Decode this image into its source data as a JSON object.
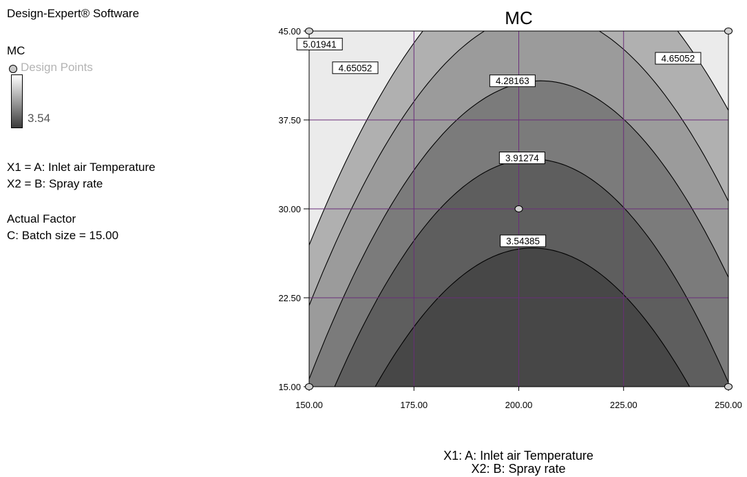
{
  "sidebar": {
    "software": "Design-Expert® Software",
    "response": "MC",
    "design_points_label": "Design Points",
    "legend_low_value": "3.54",
    "x1_def": "X1 = A: Inlet air Temperature",
    "x2_def": "X2 = B: Spray rate",
    "actual_factor_heading": "Actual Factor",
    "actual_factor_value": "C: Batch size = 15.00"
  },
  "chart_data": {
    "type": "contour",
    "title": "MC",
    "xlabel": "X1: A: Inlet air Temperature",
    "ylabel": "X2: B: Spray rate",
    "xlim": [
      150,
      250
    ],
    "ylim": [
      15,
      45
    ],
    "x_ticks": [
      "150.00",
      "175.00",
      "200.00",
      "225.00",
      "250.00"
    ],
    "y_ticks": [
      "15.00",
      "22.50",
      "30.00",
      "37.50",
      "45.00"
    ],
    "grid": true,
    "contour_levels": [
      {
        "value": "3.54385",
        "x_left": 166.5,
        "x_right": 240,
        "peak_y": 26.7,
        "label_at": [
          201,
          27.3
        ]
      },
      {
        "value": "3.91274",
        "x_left": 157,
        "x_right": 249.5,
        "peak_y": 34.2,
        "label_at": [
          200.8,
          34.3
        ]
      },
      {
        "value": "4.28163",
        "x_left": 150.4,
        "x_right": 260,
        "peak_y": 40.8,
        "label_at": [
          198.5,
          40.8
        ]
      },
      {
        "value": "4.65052",
        "x_left": 144,
        "x_right": 267,
        "peak_y": 46.5,
        "label_at": [
          161,
          41.9
        ]
      },
      {
        "value": "4.65052",
        "x_left": 144,
        "x_right": 267,
        "peak_y": 46.5,
        "label_at": [
          238,
          42.7
        ]
      },
      {
        "value": "5.01941",
        "x_left": 139,
        "x_right": 276,
        "peak_y": 52,
        "label_at": [
          152.5,
          43.9
        ]
      }
    ],
    "region_colors": [
      "#ebebeb",
      "#b0b0b0",
      "#9b9b9b",
      "#7b7b7b",
      "#5e5e5e",
      "#474747"
    ],
    "design_points": [
      [
        150,
        45
      ],
      [
        250,
        45
      ],
      [
        200,
        30
      ],
      [
        150,
        15
      ],
      [
        250,
        15
      ]
    ],
    "grid_color": "#6a2d7a"
  }
}
